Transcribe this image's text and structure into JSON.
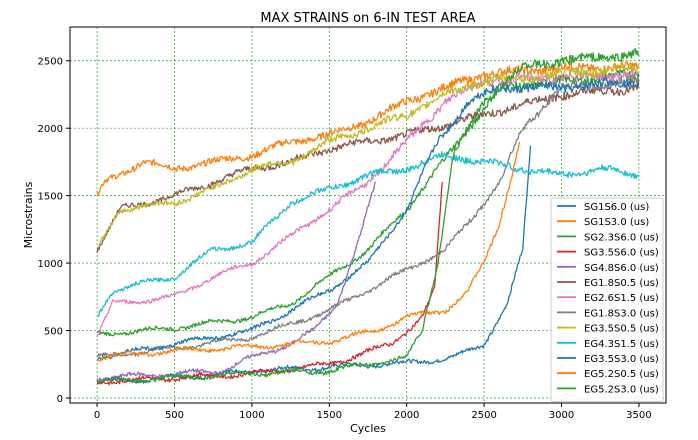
{
  "chart_data": {
    "type": "line",
    "title": "MAX STRAINS on 6-IN TEST AREA",
    "xlabel": "Cycles",
    "ylabel": "Microstrains",
    "xlim": [
      -175,
      3675
    ],
    "ylim": [
      -37,
      2750
    ],
    "xticks": [
      0,
      500,
      1000,
      1500,
      2000,
      2500,
      3000,
      3500
    ],
    "yticks": [
      0,
      500,
      1000,
      1500,
      2000,
      2500
    ],
    "grid": true,
    "grid_color": "#2ca02c",
    "legend_position": "lower-right",
    "series": [
      {
        "name": "SG1S6.0 (us)",
        "color": "#1f77b4",
        "x": [
          0,
          500,
          1000,
          1500,
          2000,
          2300,
          2500,
          2650,
          2750,
          2800
        ],
        "y": [
          120,
          150,
          200,
          230,
          260,
          300,
          400,
          700,
          1100,
          1870
        ]
      },
      {
        "name": "SG1S3.0 (us)",
        "color": "#ff7f0e",
        "x": [
          0,
          50,
          300,
          500,
          1000,
          1250,
          1500,
          1750,
          2000,
          2250,
          2500,
          3000,
          3500
        ],
        "y": [
          1500,
          1600,
          1750,
          1700,
          1800,
          1900,
          1950,
          2050,
          2200,
          2300,
          2400,
          2450,
          2450
        ]
      },
      {
        "name": "SG2.3S6.0 (us)",
        "color": "#2ca02c",
        "x": [
          0,
          500,
          1000,
          1250,
          1500,
          1750,
          2000,
          2200,
          2400,
          2600,
          3000,
          3500
        ],
        "y": [
          470,
          520,
          600,
          700,
          900,
          1100,
          1400,
          1700,
          2000,
          2300,
          2350,
          2400
        ]
      },
      {
        "name": "SG3.5S6.0 (us)",
        "color": "#d62728",
        "x": [
          0,
          500,
          1000,
          1500,
          1900,
          2100,
          2180,
          2230
        ],
        "y": [
          120,
          150,
          180,
          250,
          400,
          600,
          800,
          1600
        ]
      },
      {
        "name": "SG4.8S6.0 (us)",
        "color": "#9467bd",
        "x": [
          0,
          500,
          800,
          1000,
          1250,
          1400,
          1550,
          1700,
          1800
        ],
        "y": [
          150,
          180,
          200,
          300,
          400,
          500,
          700,
          1200,
          1600
        ]
      },
      {
        "name": "EG1.8S0.5 (us)",
        "color": "#8c564b",
        "x": [
          0,
          150,
          500,
          750,
          1000,
          1250,
          1500,
          2000,
          2500,
          3000,
          3500
        ],
        "y": [
          1100,
          1400,
          1500,
          1600,
          1700,
          1750,
          1850,
          1950,
          2100,
          2250,
          2300
        ]
      },
      {
        "name": "EG2.6S1.5 (us)",
        "color": "#e377c2",
        "x": [
          0,
          100,
          500,
          750,
          1000,
          1250,
          1500,
          1750,
          2000,
          2250,
          2500,
          3500
        ],
        "y": [
          450,
          700,
          750,
          900,
          1000,
          1200,
          1400,
          1600,
          1900,
          2200,
          2350,
          2400
        ]
      },
      {
        "name": "EG1.8S3.0 (us)",
        "color": "#7f7f7f",
        "x": [
          0,
          500,
          1000,
          1250,
          1500,
          1750,
          2000,
          2250,
          2400,
          2600,
          2750,
          3000,
          3500
        ],
        "y": [
          300,
          370,
          450,
          550,
          650,
          800,
          950,
          1100,
          1300,
          1600,
          2000,
          2300,
          2350
        ]
      },
      {
        "name": "EG3.5S0.5 (us)",
        "color": "#bcbd22",
        "x": [
          0,
          150,
          500,
          750,
          1000,
          1250,
          1500,
          1750,
          2000,
          2250,
          2500,
          3000,
          3500
        ],
        "y": [
          1100,
          1400,
          1450,
          1550,
          1700,
          1750,
          1900,
          2000,
          2100,
          2250,
          2350,
          2400,
          2450
        ]
      },
      {
        "name": "EG4.3S1.5 (us)",
        "color": "#17becf",
        "x": [
          0,
          100,
          500,
          750,
          1000,
          1250,
          1500,
          1750,
          2000,
          2250,
          2500,
          2750,
          3000,
          3250,
          3500
        ],
        "y": [
          600,
          800,
          900,
          1100,
          1150,
          1450,
          1550,
          1650,
          1700,
          1800,
          1750,
          1700,
          1650,
          1700,
          1650
        ]
      },
      {
        "name": "EG3.5S3.0 (us)",
        "color": "#1f77b4",
        "x": [
          0,
          250,
          500,
          750,
          1000,
          1250,
          1500,
          1750,
          2000,
          2200,
          2400,
          2600,
          3000,
          3500
        ],
        "y": [
          300,
          350,
          400,
          450,
          500,
          650,
          800,
          1000,
          1400,
          1900,
          2200,
          2300,
          2300,
          2350
        ]
      },
      {
        "name": "EG5.2S0.5 (us)",
        "color": "#ff7f0e",
        "x": [
          0,
          500,
          1000,
          1500,
          1800,
          2000,
          2250,
          2400,
          2500,
          2600,
          2730
        ],
        "y": [
          300,
          350,
          380,
          420,
          500,
          600,
          650,
          800,
          1000,
          1300,
          1900
        ]
      },
      {
        "name": "EG5.2S3.0 (us)",
        "color": "#2ca02c",
        "x": [
          0,
          500,
          1000,
          1500,
          2000,
          2100,
          2200,
          2300,
          2500,
          2750,
          3000,
          3500
        ],
        "y": [
          120,
          150,
          180,
          200,
          300,
          500,
          1000,
          1800,
          2200,
          2450,
          2500,
          2550
        ]
      }
    ]
  }
}
